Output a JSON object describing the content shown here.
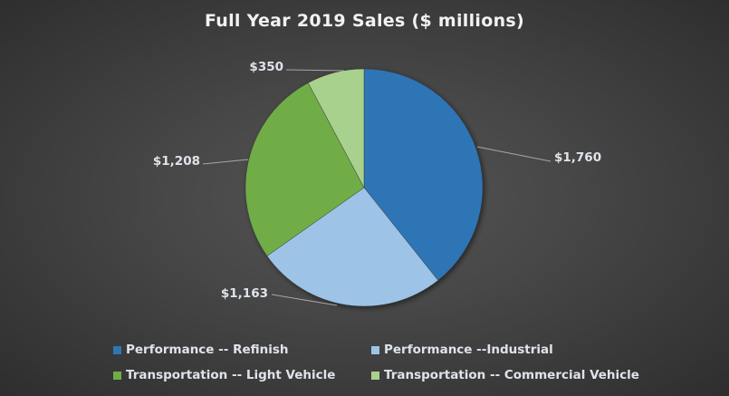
{
  "chart_data": {
    "type": "pie",
    "title": "Full Year 2019 Sales ($ millions)",
    "categories": [
      "Performance -- Refinish",
      "Performance --Industrial",
      "Transportation -- Light Vehicle",
      "Transportation -- Commercial Vehicle"
    ],
    "values": [
      1760,
      1163,
      1208,
      350
    ],
    "data_labels": [
      "$1,760",
      "$1,163",
      "$1,208",
      "$350"
    ],
    "colors": [
      "#2E75B6",
      "#9DC3E6",
      "#70AD47",
      "#A9D18E"
    ],
    "start_angle": "12 o'clock",
    "direction": "clockwise",
    "legend_position": "bottom"
  }
}
